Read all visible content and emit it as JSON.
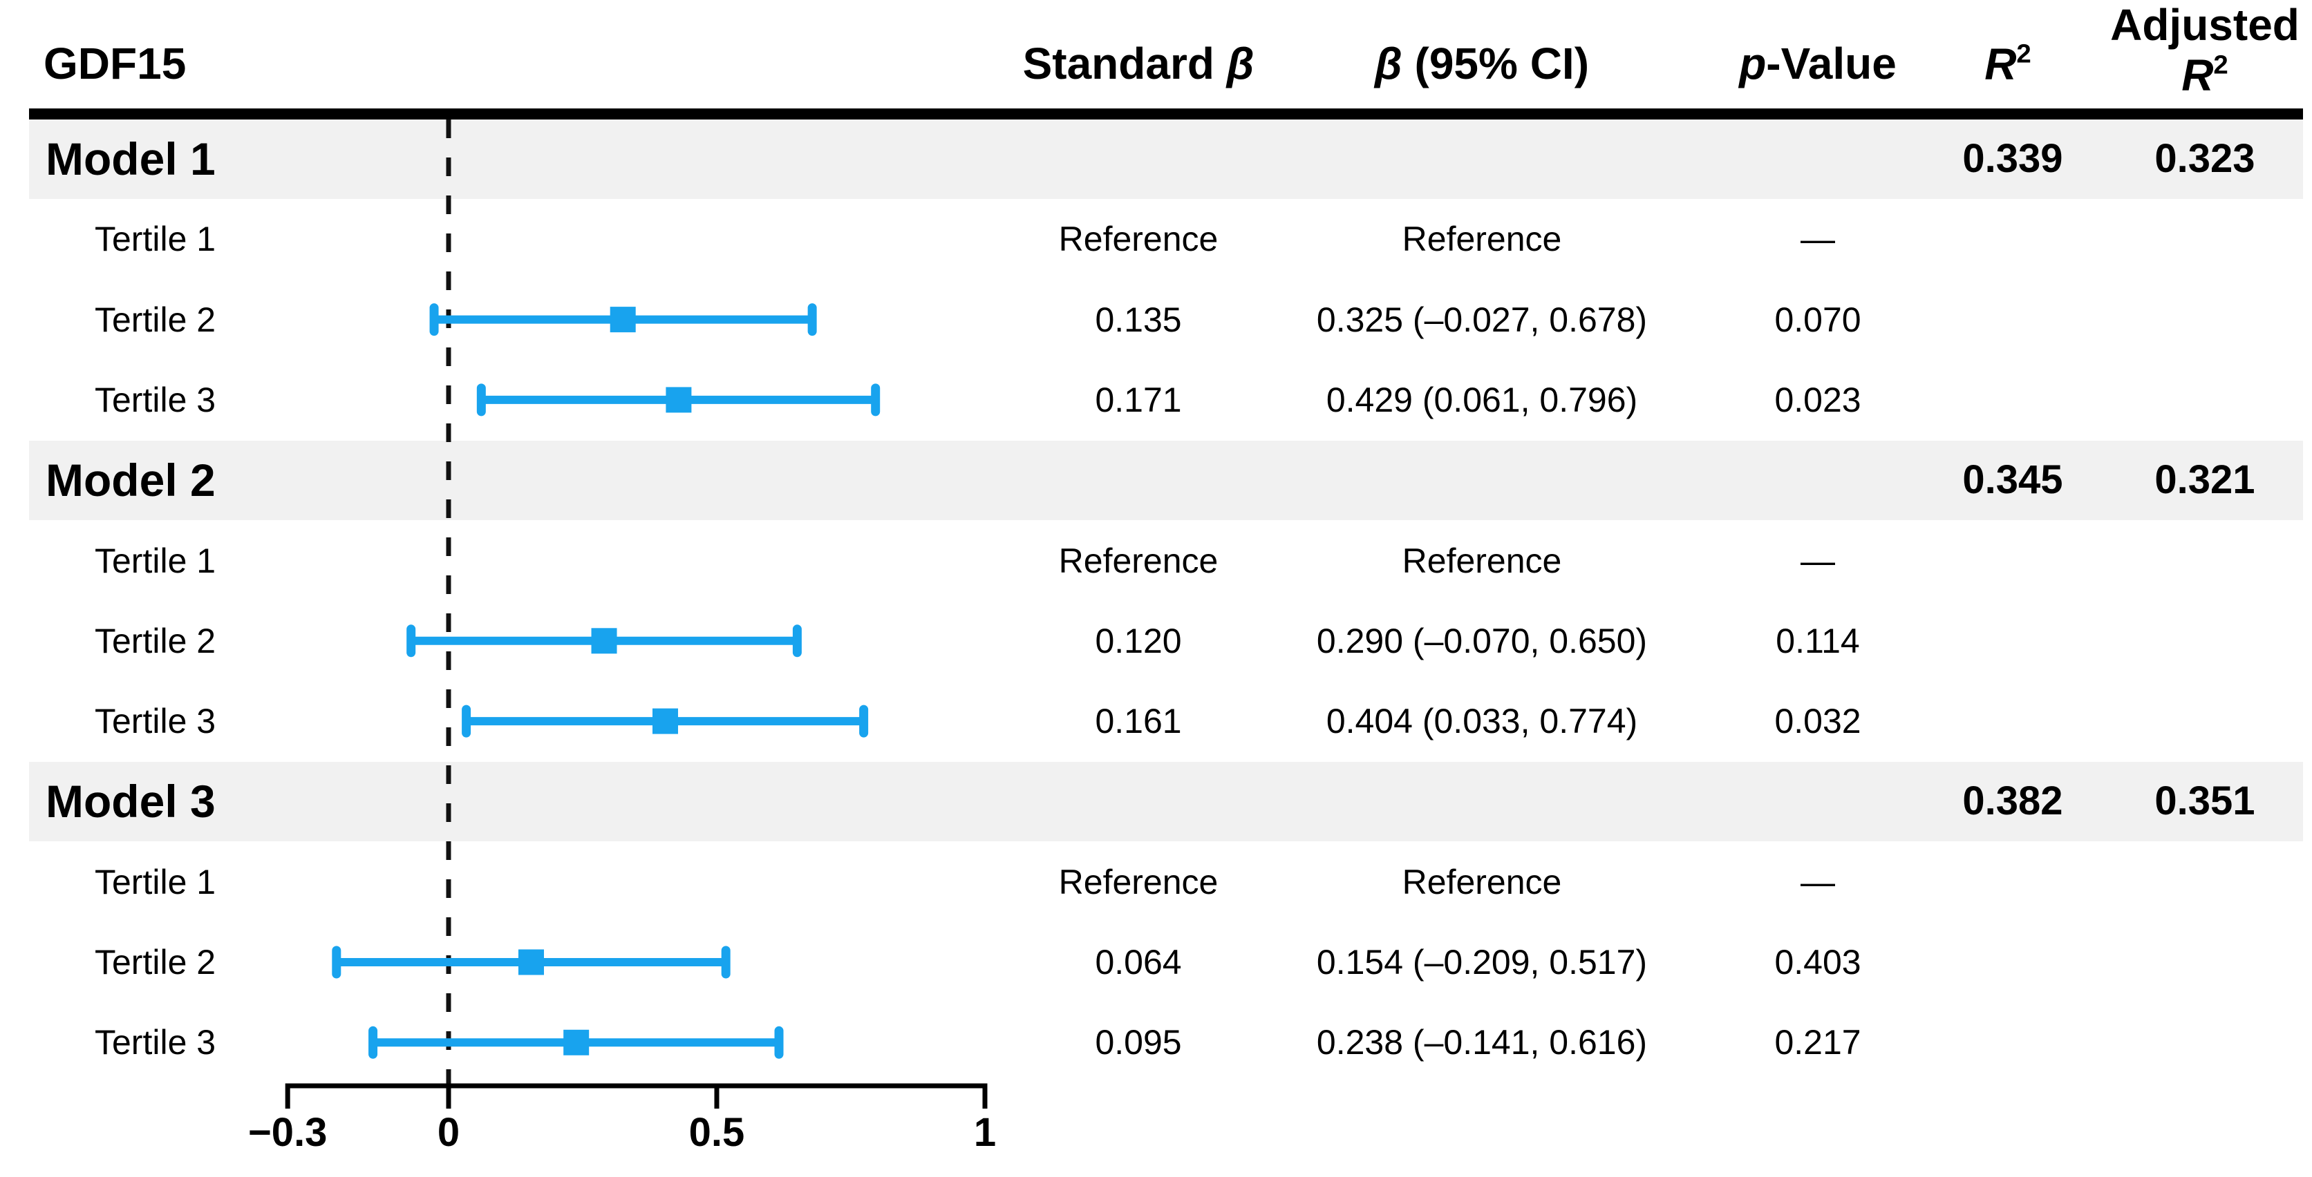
{
  "title": "GDF15",
  "columns": [
    {
      "id": "standard-beta",
      "lines": [
        [
          {
            "text": "Standard ",
            "italic": false
          },
          {
            "text": "β",
            "italic": true
          }
        ]
      ]
    },
    {
      "id": "beta-ci",
      "lines": [
        [
          {
            "text": "β",
            "italic": true
          },
          {
            "text": " (95% CI)",
            "italic": false
          }
        ]
      ]
    },
    {
      "id": "p-value",
      "lines": [
        [
          {
            "text": "p",
            "italic": true
          },
          {
            "text": "-Value",
            "italic": false
          }
        ]
      ]
    },
    {
      "id": "r-squared",
      "lines": [
        [
          {
            "text": "R",
            "italic": true
          },
          {
            "text": "2",
            "italic": false,
            "sup": true
          }
        ]
      ]
    },
    {
      "id": "adjusted-r-squared",
      "lines": [
        [
          {
            "text": "Adjusted",
            "italic": false
          }
        ],
        [
          {
            "text": "R",
            "italic": true
          },
          {
            "text": "2",
            "italic": false,
            "sup": true
          }
        ]
      ]
    }
  ],
  "chart_data": {
    "type": "scatter",
    "subtype": "forest-plot-with-table",
    "title": "GDF15",
    "xlabel": "",
    "xlim": [
      -0.3,
      1
    ],
    "x_ticks": [
      -0.3,
      0,
      0.5,
      1
    ],
    "x_tick_labels": [
      "−0.3",
      "0",
      "0.5",
      "1"
    ],
    "reference_line_x": 0,
    "marker_style": "square-with-horizontal-ci-whiskers",
    "colors": {
      "marker": "#18A3EE",
      "band": "#F1F1F1",
      "axis": "#000000",
      "text": "#000000"
    },
    "groups": [
      {
        "label": "Model 1",
        "r2": "0.339",
        "adjusted_r2": "0.323",
        "rows": [
          {
            "label": "Tertile 1",
            "standard_beta": "Reference",
            "beta_ci": "Reference",
            "p_value": "—",
            "estimate": null,
            "ci_low": null,
            "ci_high": null
          },
          {
            "label": "Tertile 2",
            "standard_beta": "0.135",
            "beta_ci": "0.325 (–0.027, 0.678)",
            "p_value": "0.070",
            "estimate": 0.325,
            "ci_low": -0.027,
            "ci_high": 0.678
          },
          {
            "label": "Tertile 3",
            "standard_beta": "0.171",
            "beta_ci": "0.429 (0.061, 0.796)",
            "p_value": "0.023",
            "estimate": 0.429,
            "ci_low": 0.061,
            "ci_high": 0.796
          }
        ]
      },
      {
        "label": "Model 2",
        "r2": "0.345",
        "adjusted_r2": "0.321",
        "rows": [
          {
            "label": "Tertile 1",
            "standard_beta": "Reference",
            "beta_ci": "Reference",
            "p_value": "—",
            "estimate": null,
            "ci_low": null,
            "ci_high": null
          },
          {
            "label": "Tertile 2",
            "standard_beta": "0.120",
            "beta_ci": "0.290 (–0.070, 0.650)",
            "p_value": "0.114",
            "estimate": 0.29,
            "ci_low": -0.07,
            "ci_high": 0.65
          },
          {
            "label": "Tertile 3",
            "standard_beta": "0.161",
            "beta_ci": "0.404 (0.033, 0.774)",
            "p_value": "0.032",
            "estimate": 0.404,
            "ci_low": 0.033,
            "ci_high": 0.774
          }
        ]
      },
      {
        "label": "Model 3",
        "r2": "0.382",
        "adjusted_r2": "0.351",
        "rows": [
          {
            "label": "Tertile 1",
            "standard_beta": "Reference",
            "beta_ci": "Reference",
            "p_value": "—",
            "estimate": null,
            "ci_low": null,
            "ci_high": null
          },
          {
            "label": "Tertile 2",
            "standard_beta": "0.064",
            "beta_ci": "0.154 (–0.209, 0.517)",
            "p_value": "0.403",
            "estimate": 0.154,
            "ci_low": -0.209,
            "ci_high": 0.517
          },
          {
            "label": "Tertile 3",
            "standard_beta": "0.095",
            "beta_ci": "0.238 (–0.141, 0.616)",
            "p_value": "0.217",
            "estimate": 0.238,
            "ci_low": -0.141,
            "ci_high": 0.616
          }
        ]
      }
    ]
  }
}
